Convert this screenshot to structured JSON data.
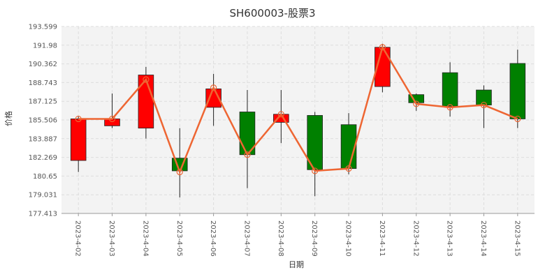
{
  "chart_data": {
    "type": "candlestick",
    "title": "SH600003-股票3",
    "xlabel": "日期",
    "ylabel": "价格",
    "categories": [
      "2023-4-02",
      "2023-4-03",
      "2023-4-04",
      "2023-4-05",
      "2023-4-06",
      "2023-4-07",
      "2023-4-08",
      "2023-4-09",
      "2023-4-10",
      "2023-4-11",
      "2023-4-12",
      "2023-4-13",
      "2023-4-14",
      "2023-4-15"
    ],
    "yticks": [
      "177.413",
      "179.031",
      "180.65",
      "182.269",
      "183.887",
      "185.506",
      "187.125",
      "188.743",
      "190.362",
      "191.98",
      "193.599"
    ],
    "ylim": [
      177.413,
      193.599
    ],
    "grid": true,
    "colors": {
      "up": "#ff0000",
      "down": "#008000",
      "line": "#ee6633",
      "plot_bg": "#f3f3f3",
      "grid": "#dddddd"
    },
    "series": [
      {
        "type": "candlestick",
        "open": [
          182.0,
          185.0,
          184.8,
          182.2,
          186.6,
          186.2,
          185.3,
          185.9,
          185.1,
          188.4,
          187.7,
          189.6,
          188.1,
          190.4
        ],
        "close": [
          185.6,
          185.6,
          189.4,
          181.1,
          188.2,
          182.5,
          186.0,
          181.2,
          181.3,
          191.8,
          187.0,
          186.7,
          186.8,
          185.6
        ],
        "low": [
          181.0,
          184.8,
          183.9,
          178.8,
          185.0,
          179.6,
          183.5,
          178.9,
          180.8,
          187.9,
          186.3,
          185.8,
          184.8,
          184.8
        ],
        "high": [
          185.8,
          187.8,
          190.1,
          184.8,
          189.5,
          188.1,
          188.1,
          186.2,
          186.1,
          192.1,
          187.8,
          190.5,
          188.5,
          191.6
        ]
      },
      {
        "type": "line",
        "values": [
          185.6,
          185.6,
          189.0,
          181.0,
          188.3,
          182.5,
          186.0,
          181.1,
          181.3,
          191.8,
          186.9,
          186.6,
          186.8,
          185.6
        ]
      }
    ]
  }
}
